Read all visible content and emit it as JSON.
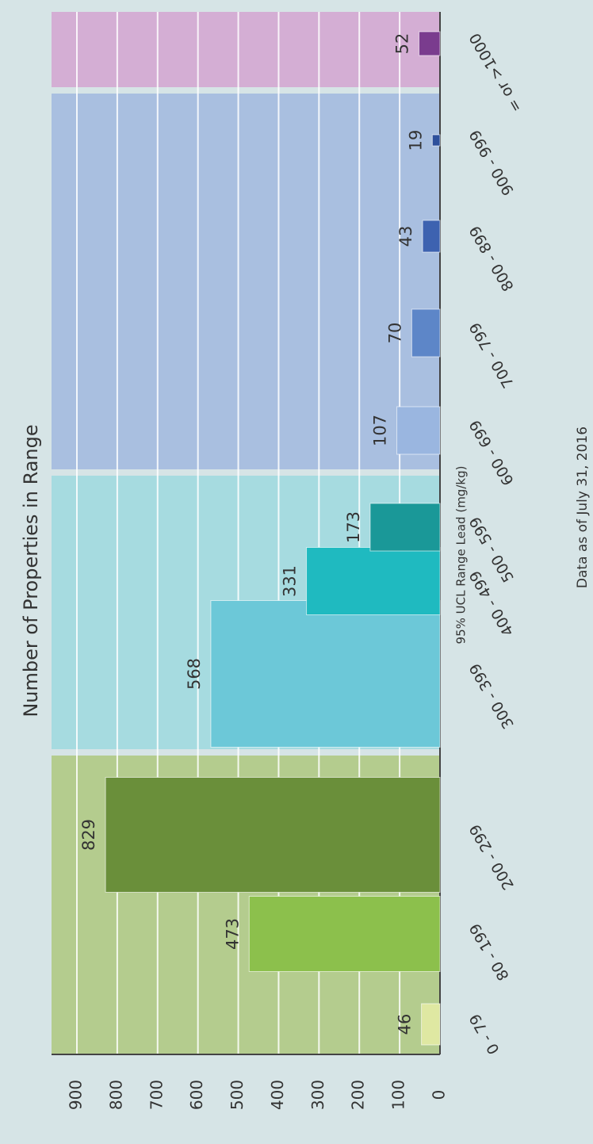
{
  "chart_data": {
    "type": "bar",
    "title": "Number of Properties in Range",
    "x_label": "95% UCL Range Lead (mg/kg)",
    "note": "Data as of July 31, 2016",
    "categories": [
      "0 - 79",
      "80 - 199",
      "200 - 299",
      "300 - 399",
      "400 - 499",
      "500 - 599",
      "600 - 699",
      "700 - 799",
      "800 - 899",
      "900 - 999",
      "= or >1000"
    ],
    "values": [
      46,
      473,
      829,
      568,
      331,
      173,
      107,
      70,
      43,
      19,
      52
    ],
    "colors": [
      "#dfe8a2",
      "#8cc04c",
      "#6a8f3a",
      "#6cc8d8",
      "#1fbac0",
      "#1a9898",
      "#9ab6e0",
      "#5d86c8",
      "#3d62b0",
      "#2d4f9c",
      "#7a3c8e"
    ],
    "ylim": [
      0,
      900
    ],
    "yticks": [
      0,
      100,
      200,
      300,
      400,
      500,
      600,
      700,
      800,
      900
    ],
    "grid": true
  }
}
